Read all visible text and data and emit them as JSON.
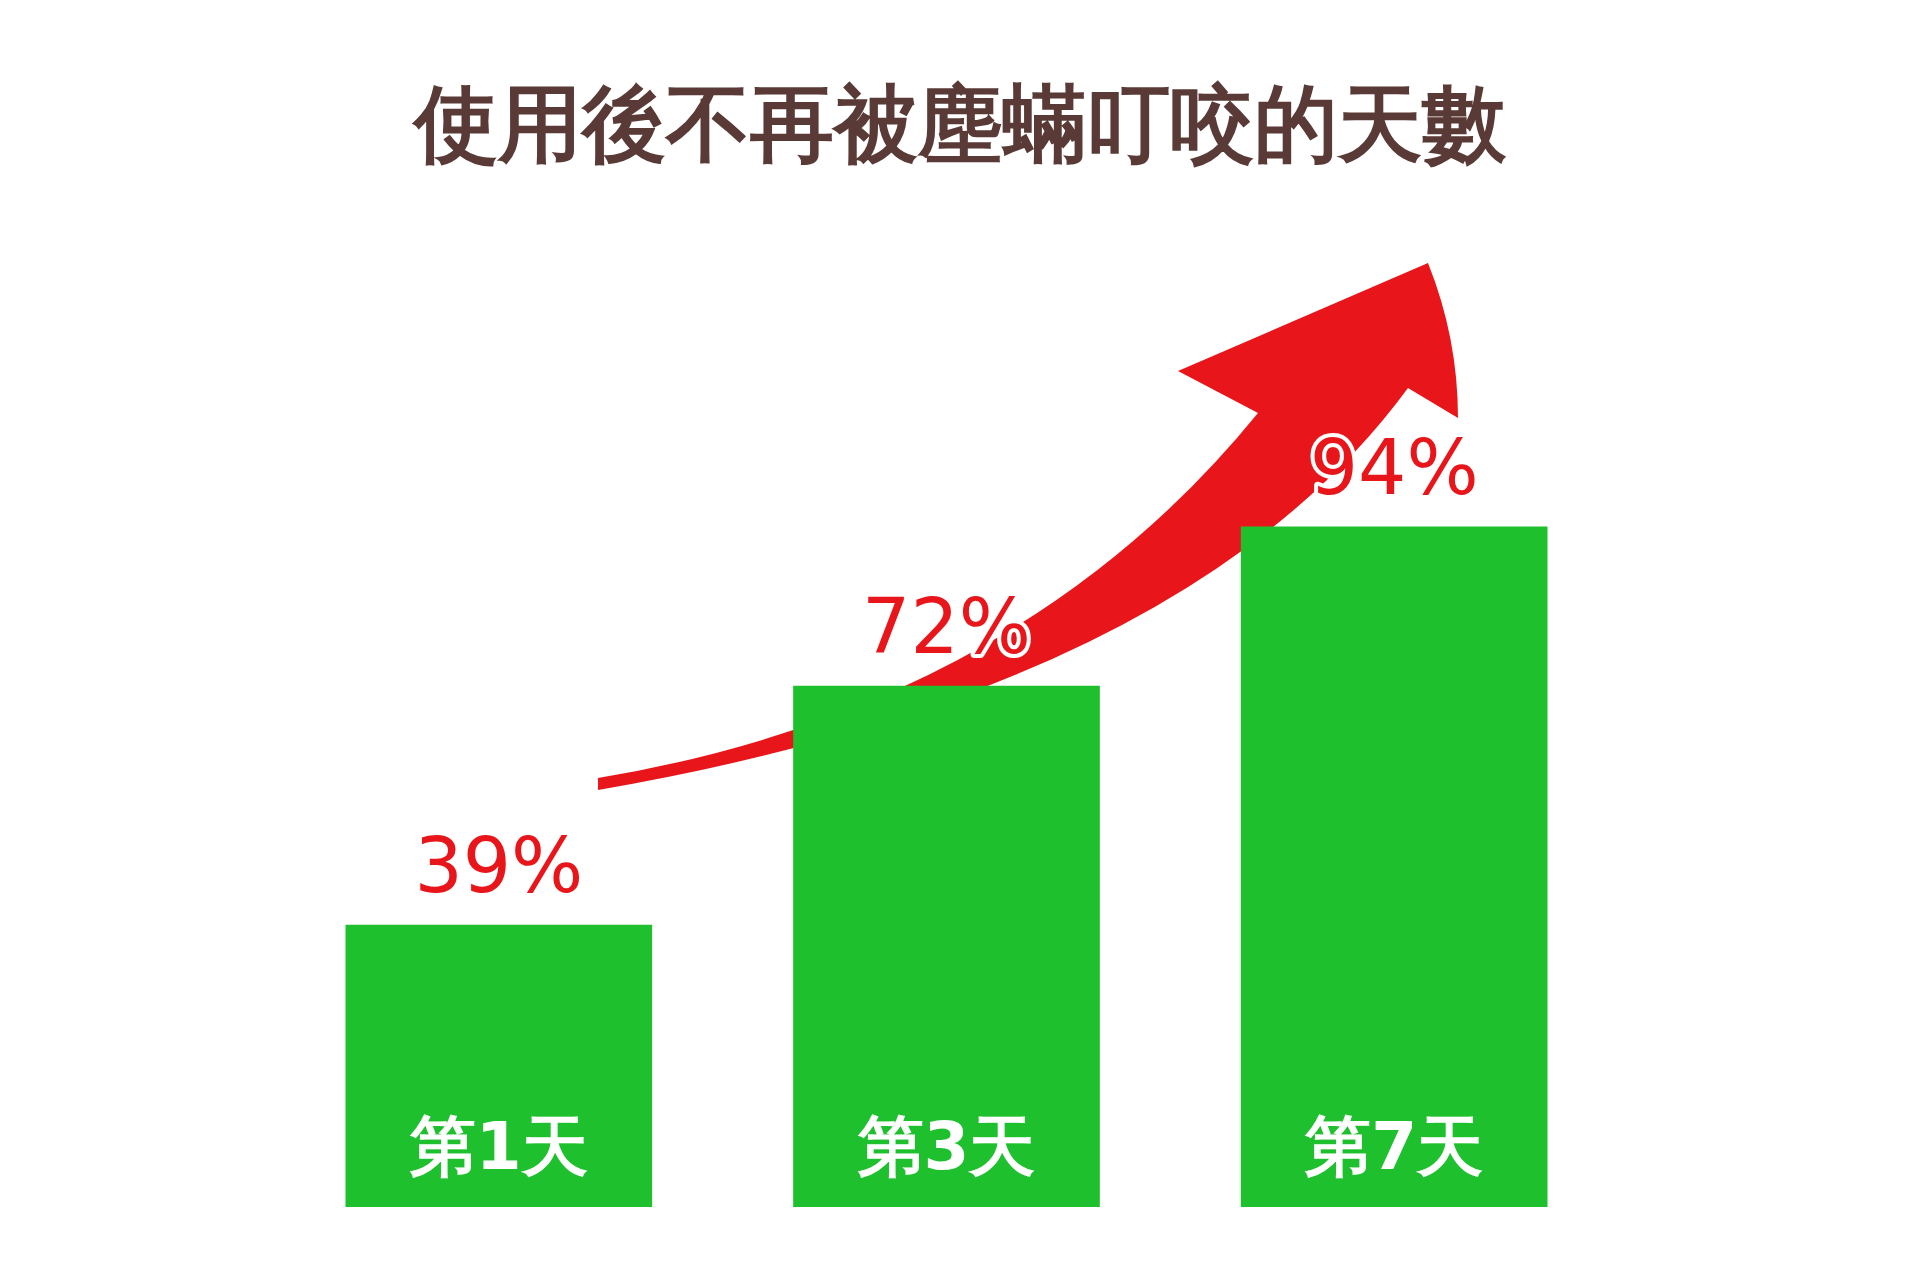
{
  "chart_data": {
    "type": "bar",
    "title": "使用後不再被塵蟎叮咬的天數",
    "categories": [
      "第1天",
      "第3天",
      "第7天"
    ],
    "values": [
      39,
      72,
      94
    ],
    "value_labels": [
      "39%",
      "72%",
      "94%"
    ],
    "color": "#1ec02e",
    "legend": false
  }
}
